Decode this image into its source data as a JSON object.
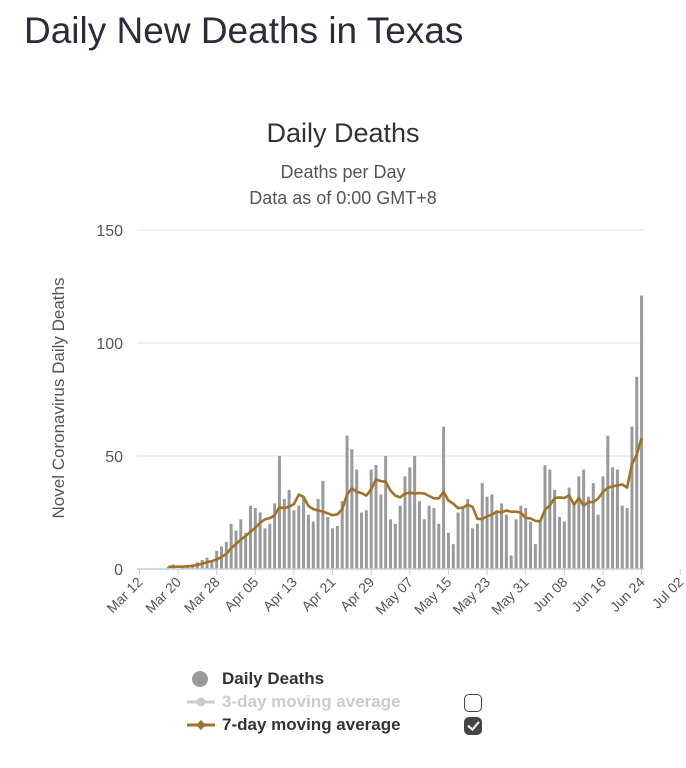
{
  "page": {
    "title": "Daily New Deaths in Texas"
  },
  "colors": {
    "bars": "#9a9a9a",
    "ma7": "#a0722a",
    "ma3": "#cccccc",
    "grid": "#e2e2e2",
    "axis": "#c6cbd8"
  },
  "chart_data": {
    "type": "bar",
    "title": "Daily Deaths",
    "subtitle": "Deaths per Day",
    "subtitle2": "Data as of 0:00 GMT+8",
    "ylabel": "Novel Coronavirus Daily Deaths",
    "xlabel": "",
    "ylim": [
      0,
      150
    ],
    "yticks": [
      0,
      50,
      100,
      150
    ],
    "start_date": "Mar 12",
    "xtick_labels": [
      "Mar 12",
      "Mar 20",
      "Mar 28",
      "Apr 05",
      "Apr 13",
      "Apr 21",
      "Apr 29",
      "May 07",
      "May 15",
      "May 23",
      "May 31",
      "Jun 08",
      "Jun 16",
      "Jun 24",
      "Jul 02"
    ],
    "series": [
      {
        "name": "Daily Deaths",
        "values": [
          0,
          0,
          0,
          0,
          0,
          0,
          1,
          2,
          0,
          1,
          1,
          2,
          3,
          4,
          5,
          3,
          8,
          10,
          12,
          20,
          17,
          22,
          16,
          28,
          27,
          25,
          18,
          20,
          29,
          50,
          31,
          35,
          26,
          28,
          32,
          24,
          21,
          31,
          39,
          23,
          18,
          19,
          30,
          59,
          53,
          44,
          25,
          26,
          44,
          46,
          33,
          50,
          22,
          20,
          28,
          41,
          45,
          50,
          30,
          22,
          28,
          27,
          20,
          63,
          16,
          11,
          25,
          27,
          31,
          18,
          20,
          38,
          32,
          33,
          26,
          29,
          24,
          6,
          22,
          28,
          27,
          21,
          11,
          21,
          46,
          44,
          35,
          23,
          21,
          36,
          28,
          41,
          44,
          32,
          38,
          24,
          41,
          59,
          45,
          44,
          28,
          27,
          63,
          85,
          121
        ]
      },
      {
        "name": "7-day moving average",
        "values": [
          null,
          null,
          null,
          null,
          null,
          null,
          1,
          1,
          1,
          1,
          1.2,
          1.4,
          1.8,
          2.4,
          3,
          3.5,
          4.2,
          5.3,
          6.7,
          9.3,
          11,
          13,
          14.5,
          16.5,
          18.2,
          20.5,
          22,
          22.5,
          23.8,
          27.3,
          26.9,
          27.6,
          28.7,
          32.9,
          31.9,
          27.9,
          26.5,
          25.9,
          25.4,
          24.6,
          23.8,
          24.2,
          26.4,
          32.9,
          35.7,
          34.2,
          33.6,
          32.5,
          35.3,
          39.6,
          38.9,
          38.6,
          34.7,
          32.5,
          31.7,
          33.4,
          33.7,
          33.4,
          33.6,
          33.4,
          32.3,
          31.3,
          31.3,
          34.1,
          30.3,
          28.9,
          26.9,
          27.2,
          28.4,
          27.5,
          22.2,
          22.1,
          23.3,
          24,
          25.4,
          25.1,
          25.9,
          25.3,
          25.4,
          24.9,
          22.6,
          22.4,
          21.3,
          21.1,
          26.2,
          28.1,
          31.4,
          31.7,
          31.4,
          32.6,
          28.4,
          31.4,
          28,
          29.6,
          29.6,
          31.2,
          34.1,
          35.9,
          36.6,
          37,
          37.4,
          36,
          46.3,
          50.6,
          58
        ]
      },
      {
        "name": "3-day moving average",
        "values": []
      }
    ]
  },
  "legend": {
    "items": [
      {
        "label": "Daily Deaths"
      },
      {
        "label": "3-day moving average",
        "checked": false
      },
      {
        "label": "7-day moving average",
        "checked": true
      }
    ]
  }
}
